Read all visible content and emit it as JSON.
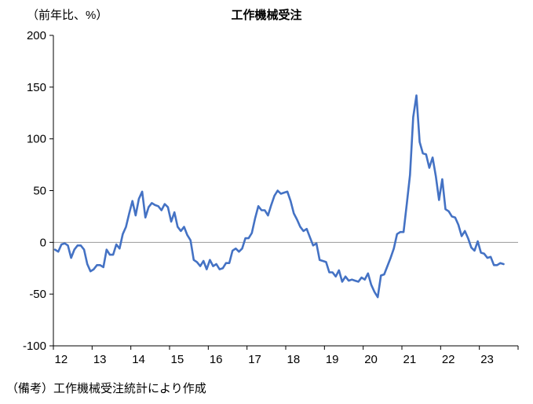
{
  "header": {
    "unit_label": "（前年比、%）",
    "title": "工作機械受注"
  },
  "footer": {
    "note": "（備考）工作機械受注統計により作成"
  },
  "chart_data": {
    "type": "line",
    "title": "工作機械受注",
    "unit_label": "（前年比、%）",
    "source_note": "（備考）工作機械受注統計により作成",
    "frequency": "monthly",
    "x_start": "2012-01",
    "x_base_year": 2012,
    "x_range": [
      2012,
      2024
    ],
    "xtick_labels": [
      "12",
      "13",
      "14",
      "15",
      "16",
      "17",
      "18",
      "19",
      "20",
      "21",
      "22",
      "23"
    ],
    "ylim": [
      -100,
      200
    ],
    "yticks": [
      200,
      150,
      100,
      50,
      0,
      -50,
      -100
    ],
    "grid": "zero-line-only",
    "legend": "none",
    "colors": {
      "line": "#4472C4",
      "zero_line": "#999999",
      "axis": "#000000"
    },
    "values": [
      -7,
      -9,
      -2,
      -1,
      -3,
      -15,
      -7,
      -3,
      -3,
      -7,
      -21,
      -28,
      -26,
      -22,
      -22,
      -24,
      -7,
      -12,
      -12,
      -2,
      -6,
      8,
      15,
      28,
      40,
      26,
      42,
      49,
      24,
      34,
      38,
      36,
      35,
      31,
      37,
      34,
      20,
      29,
      15,
      11,
      15,
      7,
      2,
      -17,
      -19,
      -23,
      -18,
      -26,
      -17,
      -23,
      -21,
      -26,
      -25,
      -20,
      -20,
      -8,
      -6,
      -9,
      -6,
      4,
      4,
      9,
      23,
      35,
      31,
      31,
      26,
      36,
      45,
      50,
      47,
      48,
      49,
      40,
      28,
      22,
      15,
      11,
      13,
      5,
      -3,
      -1,
      -17,
      -18,
      -19,
      -29,
      -29,
      -33,
      -27,
      -38,
      -33,
      -37,
      -36,
      -37,
      -38,
      -34,
      -36,
      -30,
      -41,
      -48,
      -53,
      -32,
      -31,
      -23,
      -15,
      -6,
      8,
      10,
      10,
      37,
      65,
      121,
      142,
      97,
      86,
      85,
      72,
      82,
      64,
      41,
      61,
      32,
      30,
      25,
      24,
      17,
      6,
      11,
      4,
      -5,
      -8,
      1,
      -10,
      -11,
      -15,
      -14,
      -22,
      -22,
      -20,
      -21
    ]
  }
}
